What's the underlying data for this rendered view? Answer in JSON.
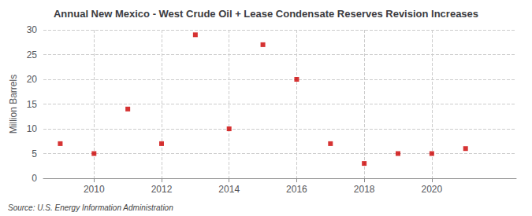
{
  "chart_data": {
    "type": "scatter",
    "title": "Annual New Mexico - West Crude Oil + Lease Condensate Reserves Revision Increases",
    "ylabel": "Million Barrels",
    "annotation": "Source: U.S. Energy Information Administration",
    "x": [
      2009,
      2010,
      2011,
      2012,
      2013,
      2014,
      2015,
      2016,
      2017,
      2018,
      2019,
      2020,
      2021
    ],
    "values": [
      7.0,
      5.0,
      14.0,
      7.0,
      29.0,
      10.0,
      27.0,
      20.0,
      7.0,
      3.0,
      5.0,
      5.0,
      6.0
    ],
    "color": "#cc0000",
    "marker": "square",
    "xlim": [
      2008.5,
      2022.5
    ],
    "xticks": [
      2010,
      2012,
      2014,
      2016,
      2018,
      2020
    ],
    "ylim": [
      0,
      30
    ],
    "yticks": [
      0,
      5,
      10,
      15,
      20,
      25,
      30
    ],
    "grid": true
  }
}
